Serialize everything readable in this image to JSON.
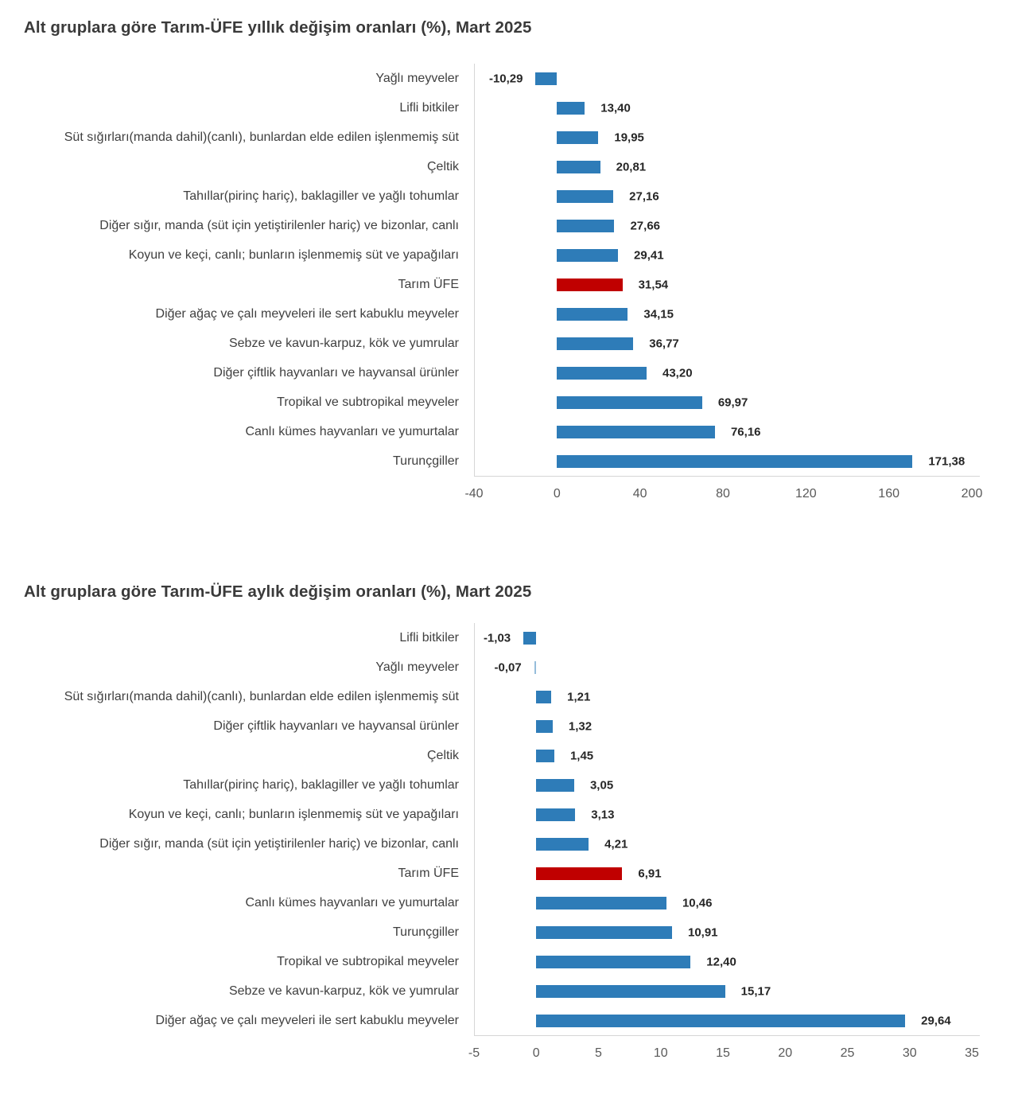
{
  "chart_data": [
    {
      "type": "bar",
      "orientation": "horizontal",
      "title": "Alt gruplara göre Tarım-ÜFE yıllık değişim oranları (%), Mart 2025",
      "categories": [
        "Yağlı meyveler",
        "Lifli bitkiler",
        "Süt sığırları(manda dahil)(canlı), bunlardan elde edilen işlenmemiş süt",
        "Çeltik",
        "Tahıllar(pirinç hariç), baklagiller ve yağlı tohumlar",
        "Diğer sığır, manda (süt için yetiştirilenler hariç) ve bizonlar, canlı",
        "Koyun ve keçi, canlı; bunların işlenmemiş süt ve yapağıları",
        "Tarım ÜFE",
        "Diğer ağaç ve çalı meyveleri ile sert kabuklu meyveler",
        "Sebze ve kavun-karpuz, kök ve yumrular",
        "Diğer çiftlik hayvanları ve hayvansal ürünler",
        "Tropikal ve subtropikal meyveler",
        "Canlı kümes hayvanları ve yumurtalar",
        "Turunçgiller"
      ],
      "values": [
        -10.29,
        13.4,
        19.95,
        20.81,
        27.16,
        27.66,
        29.41,
        31.54,
        34.15,
        36.77,
        43.2,
        69.97,
        76.16,
        171.38
      ],
      "value_labels": [
        "-10,29",
        "13,40",
        "19,95",
        "20,81",
        "27,16",
        "27,66",
        "29,41",
        "31,54",
        "34,15",
        "36,77",
        "43,20",
        "69,97",
        "76,16",
        "171,38"
      ],
      "highlight_category": "Tarım ÜFE",
      "xlabel": "",
      "ylabel": "",
      "xlim": [
        -40,
        200
      ],
      "xticks": [
        -40,
        0,
        40,
        80,
        120,
        160,
        200
      ],
      "grid": false,
      "legend": false,
      "bar_color": "#2e7cb8",
      "highlight_color": "#c00000"
    },
    {
      "type": "bar",
      "orientation": "horizontal",
      "title": "Alt gruplara göre Tarım-ÜFE aylık değişim oranları (%), Mart 2025",
      "categories": [
        "Lifli bitkiler",
        "Yağlı meyveler",
        "Süt sığırları(manda dahil)(canlı), bunlardan elde edilen işlenmemiş süt",
        "Diğer çiftlik hayvanları ve hayvansal ürünler",
        "Çeltik",
        "Tahıllar(pirinç hariç), baklagiller ve yağlı tohumlar",
        "Koyun ve keçi, canlı; bunların işlenmemiş süt ve yapağıları",
        "Diğer sığır, manda (süt için yetiştirilenler hariç) ve bizonlar, canlı",
        "Tarım ÜFE",
        "Canlı kümes hayvanları ve yumurtalar",
        "Turunçgiller",
        "Tropikal ve subtropikal meyveler",
        "Sebze ve kavun-karpuz, kök ve yumrular",
        "Diğer ağaç ve çalı meyveleri ile sert kabuklu meyveler"
      ],
      "values": [
        -1.03,
        -0.07,
        1.21,
        1.32,
        1.45,
        3.05,
        3.13,
        4.21,
        6.91,
        10.46,
        10.91,
        12.4,
        15.17,
        29.64
      ],
      "value_labels": [
        "-1,03",
        "-0,07",
        "1,21",
        "1,32",
        "1,45",
        "3,05",
        "3,13",
        "4,21",
        "6,91",
        "10,46",
        "10,91",
        "12,40",
        "15,17",
        "29,64"
      ],
      "highlight_category": "Tarım ÜFE",
      "xlabel": "",
      "ylabel": "",
      "xlim": [
        -5,
        35
      ],
      "xticks": [
        -5,
        0,
        5,
        10,
        15,
        20,
        25,
        30,
        35
      ],
      "grid": false,
      "legend": false,
      "bar_color": "#2e7cb8",
      "highlight_color": "#c00000"
    }
  ],
  "colors": {
    "bar_blue": "#2e7cb8",
    "bar_red": "#c00000",
    "axis_line": "#d6d6d6",
    "title_text": "#3a3a3a",
    "category_text": "#404040",
    "value_text": "#262626",
    "tick_text": "#595959",
    "background": "#ffffff"
  }
}
